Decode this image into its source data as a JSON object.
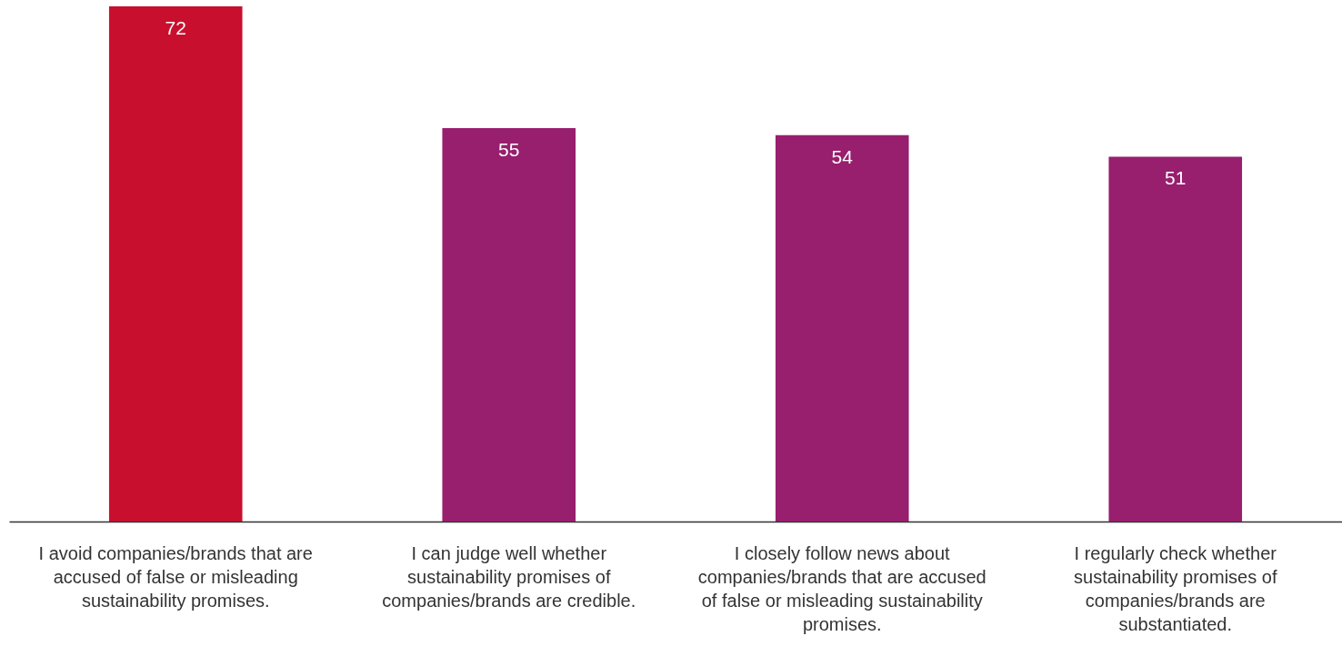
{
  "chart_data": {
    "type": "bar",
    "categories": [
      "I avoid companies/brands that are accused of false or misleading sustainability promises.",
      "I can judge well whether sustainability promises of companies/brands are credible.",
      "I closely follow news about companies/brands that are accused of false or misleading sustainability promises.",
      "I regularly check whether sustainability promises of companies/brands are substantiated."
    ],
    "values": [
      72,
      55,
      54,
      51
    ],
    "colors": [
      "#c8102e",
      "#981e6e",
      "#981e6e",
      "#981e6e"
    ],
    "data_labels": true
  }
}
